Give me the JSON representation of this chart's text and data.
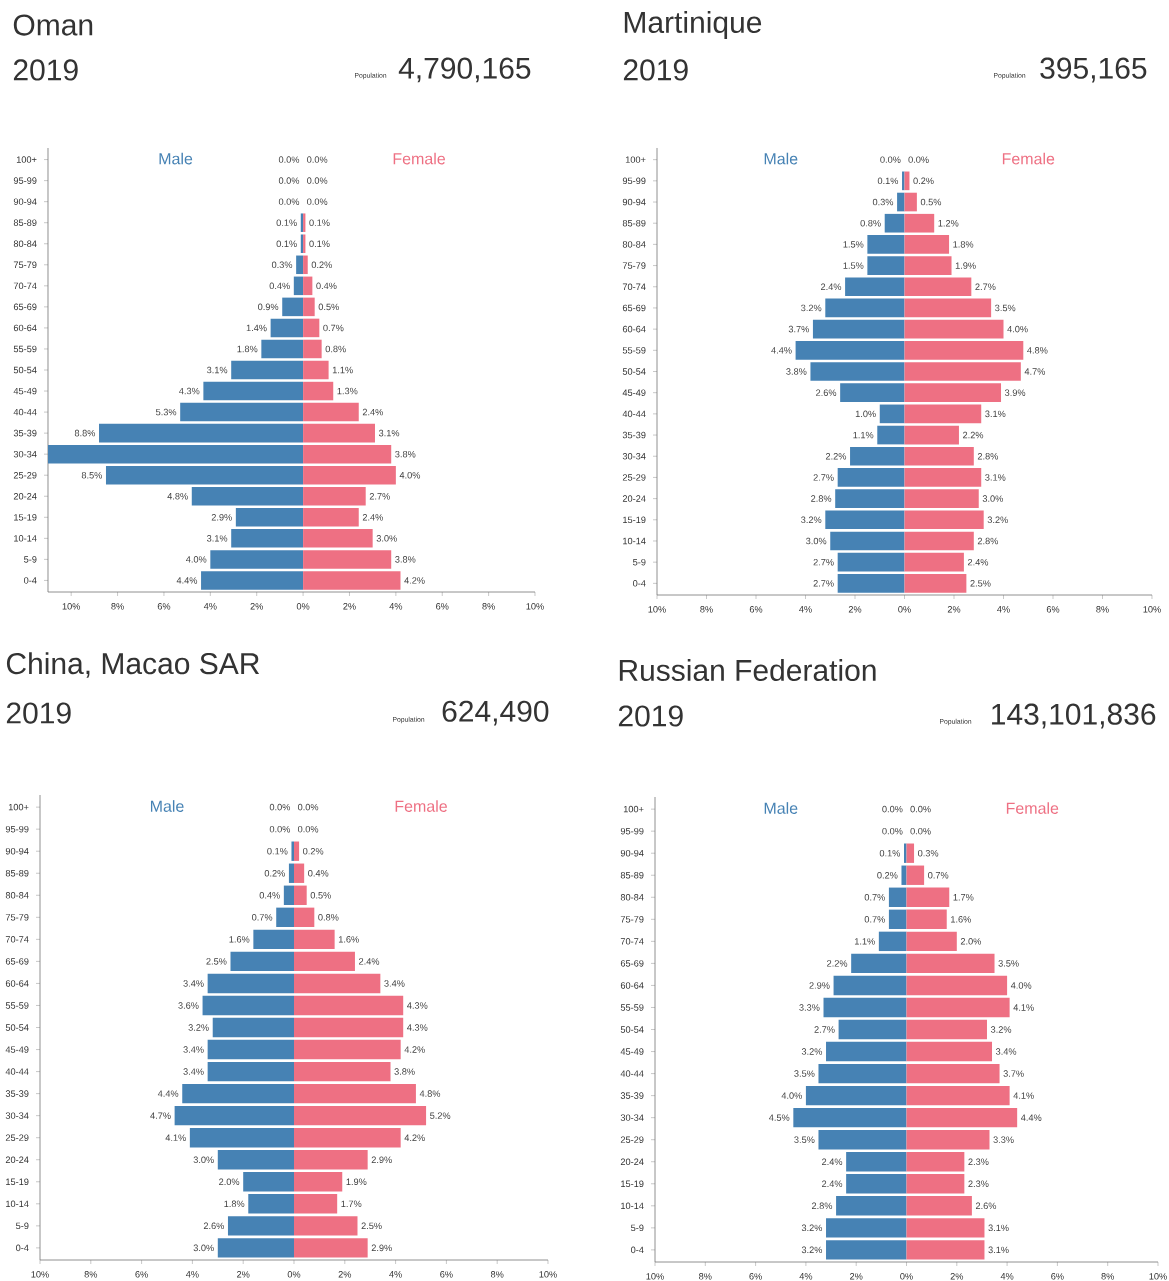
{
  "chart_data": [
    {
      "type": "bar",
      "orientation": "horizontal",
      "title": "Oman",
      "subtitle": "2019",
      "annotations": [
        "Population",
        "4,790,165"
      ],
      "categories": [
        "100+",
        "95-99",
        "90-94",
        "85-89",
        "80-84",
        "75-79",
        "70-74",
        "65-69",
        "60-64",
        "55-59",
        "50-54",
        "45-49",
        "40-44",
        "35-39",
        "30-34",
        "25-29",
        "20-24",
        "15-19",
        "10-14",
        "5-9",
        "0-4"
      ],
      "series": [
        {
          "name": "Male",
          "color": "#4682b4",
          "values": [
            0.0,
            0.0,
            0.0,
            0.1,
            0.1,
            0.3,
            0.4,
            0.9,
            1.4,
            1.8,
            3.1,
            4.3,
            5.3,
            8.8,
            11.0,
            8.5,
            4.8,
            2.9,
            3.1,
            4.0,
            4.4
          ],
          "base": [
            null,
            null,
            null,
            -0.1,
            -0.1,
            -0.3,
            -0.4,
            -0.9,
            -1.4,
            -1.8,
            -3.1,
            -4.3,
            -5.3,
            -8.8,
            -11.0,
            -8.5,
            -4.8,
            -2.9,
            -3.1,
            -4.0,
            -4.4
          ],
          "value_labels": [
            "0.0%",
            "0.0%",
            "0.0%",
            "0.1%",
            "0.1%",
            "0.3%",
            "0.4%",
            "0.9%",
            "1.4%",
            "1.8%",
            "3.1%",
            "4.3%",
            "5.3%",
            "8.8%",
            null,
            "8.5%",
            "4.8%",
            "2.9%",
            "3.1%",
            "4.0%",
            "4.4%"
          ]
        },
        {
          "name": "Female",
          "color": "#ee7083",
          "values": [
            0.0,
            0.0,
            0.0,
            0.1,
            0.1,
            0.2,
            0.4,
            0.5,
            0.7,
            0.8,
            1.1,
            1.3,
            2.4,
            3.1,
            3.8,
            4.0,
            2.7,
            2.4,
            3.0,
            3.8,
            4.2
          ],
          "value_labels": [
            "0.0%",
            "0.0%",
            "0.0%",
            "0.1%",
            "0.1%",
            "0.2%",
            "0.4%",
            "0.5%",
            "0.7%",
            "0.8%",
            "1.1%",
            "1.3%",
            "2.4%",
            "3.1%",
            "3.8%",
            "4.0%",
            "2.7%",
            "2.4%",
            "3.0%",
            "3.8%",
            "4.2%"
          ]
        }
      ],
      "xlim": [
        -11,
        10
      ],
      "xticks": [
        {
          "value": -10,
          "label": "10%"
        },
        {
          "value": -8,
          "label": "8%"
        },
        {
          "value": -6,
          "label": "6%"
        },
        {
          "value": -4,
          "label": "4%"
        },
        {
          "value": -2,
          "label": "2%"
        },
        {
          "value": 0,
          "label": "0%"
        },
        {
          "value": 2,
          "label": "2%"
        },
        {
          "value": 4,
          "label": "4%"
        },
        {
          "value": 6,
          "label": "6%"
        },
        {
          "value": 8,
          "label": "8%"
        },
        {
          "value": 10,
          "label": "10%"
        }
      ]
    },
    {
      "type": "bar",
      "orientation": "horizontal",
      "title": "Martinique",
      "subtitle": "2019",
      "annotations": [
        "Population",
        "395,165"
      ],
      "categories": [
        "100+",
        "95-99",
        "90-94",
        "85-89",
        "80-84",
        "75-79",
        "70-74",
        "65-69",
        "60-64",
        "55-59",
        "50-54",
        "45-49",
        "40-44",
        "35-39",
        "30-34",
        "25-29",
        "20-24",
        "15-19",
        "10-14",
        "5-9",
        "0-4"
      ],
      "series": [
        {
          "name": "Male",
          "color": "#4682b4",
          "values": [
            0.0,
            0.1,
            0.3,
            0.8,
            1.5,
            1.5,
            2.4,
            3.2,
            3.7,
            4.4,
            3.8,
            2.6,
            1.0,
            1.1,
            2.2,
            2.7,
            2.8,
            3.2,
            3.0,
            2.7,
            2.7
          ],
          "base": [
            null,
            -0.1,
            -0.3,
            -0.8,
            -1.5,
            -1.5,
            -2.4,
            -3.2,
            -3.7,
            -4.4,
            -3.8,
            -2.6,
            -1.0,
            -1.1,
            -2.2,
            -2.7,
            -2.8,
            -3.2,
            -3.0,
            -2.7,
            -2.7
          ],
          "value_labels": [
            "0.0%",
            "0.1%",
            "0.3%",
            "0.8%",
            "1.5%",
            "1.5%",
            "2.4%",
            "3.2%",
            "3.7%",
            "4.4%",
            "3.8%",
            "2.6%",
            "1.0%",
            "1.1%",
            "2.2%",
            "2.7%",
            "2.8%",
            "3.2%",
            "3.0%",
            "2.7%",
            "2.7%"
          ]
        },
        {
          "name": "Female",
          "color": "#ee7083",
          "values": [
            0.0,
            0.2,
            0.5,
            1.2,
            1.8,
            1.9,
            2.7,
            3.5,
            4.0,
            4.8,
            4.7,
            3.9,
            3.1,
            2.2,
            2.8,
            3.1,
            3.0,
            3.2,
            2.8,
            2.4,
            2.5
          ],
          "value_labels": [
            "0.0%",
            "0.2%",
            "0.5%",
            "1.2%",
            "1.8%",
            "1.9%",
            "2.7%",
            "3.5%",
            "4.0%",
            "4.8%",
            "4.7%",
            "3.9%",
            "3.1%",
            "2.2%",
            "2.8%",
            "3.1%",
            "3.0%",
            "3.2%",
            "2.8%",
            "2.4%",
            "2.5%"
          ]
        }
      ],
      "xlim": [
        -10,
        10
      ],
      "xticks": [
        {
          "value": -10,
          "label": "10%"
        },
        {
          "value": -8,
          "label": "8%"
        },
        {
          "value": -6,
          "label": "6%"
        },
        {
          "value": -4,
          "label": "4%"
        },
        {
          "value": -2,
          "label": "2%"
        },
        {
          "value": 0,
          "label": "0%"
        },
        {
          "value": 2,
          "label": "2%"
        },
        {
          "value": 4,
          "label": "4%"
        },
        {
          "value": 6,
          "label": "6%"
        },
        {
          "value": 8,
          "label": "8%"
        },
        {
          "value": 10,
          "label": "10%"
        }
      ]
    },
    {
      "type": "bar",
      "orientation": "horizontal",
      "title": "China, Macao SAR",
      "subtitle": "2019",
      "annotations": [
        "Population",
        "624,490"
      ],
      "categories": [
        "100+",
        "95-99",
        "90-94",
        "85-89",
        "80-84",
        "75-79",
        "70-74",
        "65-69",
        "60-64",
        "55-59",
        "50-54",
        "45-49",
        "40-44",
        "35-39",
        "30-34",
        "25-29",
        "20-24",
        "15-19",
        "10-14",
        "5-9",
        "0-4"
      ],
      "series": [
        {
          "name": "Male",
          "color": "#4682b4",
          "values": [
            0.0,
            0.0,
            0.1,
            0.2,
            0.4,
            0.7,
            1.6,
            2.5,
            3.4,
            3.6,
            3.2,
            3.4,
            3.4,
            4.4,
            4.7,
            4.1,
            3.0,
            2.0,
            1.8,
            2.6,
            3.0
          ],
          "base": [
            null,
            null,
            -0.1,
            -0.2,
            -0.4,
            -0.7,
            -1.6,
            -2.5,
            -3.4,
            -3.6,
            -3.2,
            -3.4,
            -3.4,
            -4.4,
            -4.7,
            -4.1,
            -3.0,
            -2.0,
            -1.8,
            -2.6,
            -3.0
          ],
          "value_labels": [
            "0.0%",
            "0.0%",
            "0.1%",
            "0.2%",
            "0.4%",
            "0.7%",
            "1.6%",
            "2.5%",
            "3.4%",
            "3.6%",
            "3.2%",
            "3.4%",
            "3.4%",
            "4.4%",
            "4.7%",
            "4.1%",
            "3.0%",
            "2.0%",
            "1.8%",
            "2.6%",
            "3.0%"
          ]
        },
        {
          "name": "Female",
          "color": "#ee7083",
          "values": [
            0.0,
            0.0,
            0.2,
            0.4,
            0.5,
            0.8,
            1.6,
            2.4,
            3.4,
            4.3,
            4.3,
            4.2,
            3.8,
            4.8,
            5.2,
            4.2,
            2.9,
            1.9,
            1.7,
            2.5,
            2.9
          ],
          "value_labels": [
            "0.0%",
            "0.0%",
            "0.2%",
            "0.4%",
            "0.5%",
            "0.8%",
            "1.6%",
            "2.4%",
            "3.4%",
            "4.3%",
            "4.3%",
            "4.2%",
            "3.8%",
            "4.8%",
            "5.2%",
            "4.2%",
            "2.9%",
            "1.9%",
            "1.7%",
            "2.5%",
            "2.9%"
          ]
        }
      ],
      "xlim": [
        -10,
        10
      ],
      "xticks": [
        {
          "value": -10,
          "label": "10%"
        },
        {
          "value": -8,
          "label": "8%"
        },
        {
          "value": -6,
          "label": "6%"
        },
        {
          "value": -4,
          "label": "4%"
        },
        {
          "value": -2,
          "label": "2%"
        },
        {
          "value": 0,
          "label": "0%"
        },
        {
          "value": 2,
          "label": "2%"
        },
        {
          "value": 4,
          "label": "4%"
        },
        {
          "value": 6,
          "label": "6%"
        },
        {
          "value": 8,
          "label": "8%"
        },
        {
          "value": 10,
          "label": "10%"
        }
      ]
    },
    {
      "type": "bar",
      "orientation": "horizontal",
      "title": "Russian Federation",
      "subtitle": "2019",
      "annotations": [
        "Population",
        "143,101,836"
      ],
      "categories": [
        "100+",
        "95-99",
        "90-94",
        "85-89",
        "80-84",
        "75-79",
        "70-74",
        "65-69",
        "60-64",
        "55-59",
        "50-54",
        "45-49",
        "40-44",
        "35-39",
        "30-34",
        "25-29",
        "20-24",
        "15-19",
        "10-14",
        "5-9",
        "0-4"
      ],
      "series": [
        {
          "name": "Male",
          "color": "#4682b4",
          "values": [
            0.0,
            0.0,
            0.1,
            0.2,
            0.7,
            0.7,
            1.1,
            2.2,
            2.9,
            3.3,
            2.7,
            3.2,
            3.5,
            4.0,
            4.5,
            3.5,
            2.4,
            2.4,
            2.8,
            3.2,
            3.2
          ],
          "base": [
            null,
            null,
            -0.1,
            -0.2,
            -0.7,
            -0.7,
            -1.1,
            -2.2,
            -2.9,
            -3.3,
            -2.7,
            -3.2,
            -3.5,
            -4.0,
            -4.5,
            -3.5,
            -2.4,
            -2.4,
            -2.8,
            -3.2,
            -3.2
          ],
          "value_labels": [
            "0.0%",
            "0.0%",
            "0.1%",
            "0.2%",
            "0.7%",
            "0.7%",
            "1.1%",
            "2.2%",
            "2.9%",
            "3.3%",
            "2.7%",
            "3.2%",
            "3.5%",
            "4.0%",
            "4.5%",
            "3.5%",
            "2.4%",
            "2.4%",
            "2.8%",
            "3.2%",
            "3.2%"
          ]
        },
        {
          "name": "Female",
          "color": "#ee7083",
          "values": [
            0.0,
            0.0,
            0.3,
            0.7,
            1.7,
            1.6,
            2.0,
            3.5,
            4.0,
            4.1,
            3.2,
            3.4,
            3.7,
            4.1,
            4.4,
            3.3,
            2.3,
            2.3,
            2.6,
            3.1,
            3.1
          ],
          "value_labels": [
            "0.0%",
            "0.0%",
            "0.3%",
            "0.7%",
            "1.7%",
            "1.6%",
            "2.0%",
            "3.5%",
            "4.0%",
            "4.1%",
            "3.2%",
            "3.4%",
            "3.7%",
            "4.1%",
            "4.4%",
            "3.3%",
            "2.3%",
            "2.3%",
            "2.6%",
            "3.1%",
            "3.1%"
          ]
        }
      ],
      "xlim": [
        -10,
        10
      ],
      "xticks": [
        {
          "value": -10,
          "label": "10%"
        },
        {
          "value": -8,
          "label": "8%"
        },
        {
          "value": -6,
          "label": "6%"
        },
        {
          "value": -4,
          "label": "4%"
        },
        {
          "value": -2,
          "label": "2%"
        },
        {
          "value": 0,
          "label": "0%"
        },
        {
          "value": 2,
          "label": "2%"
        },
        {
          "value": 4,
          "label": "4%"
        },
        {
          "value": 6,
          "label": "6%"
        },
        {
          "value": 8,
          "label": "8%"
        },
        {
          "value": 10,
          "label": "10%"
        }
      ]
    }
  ]
}
